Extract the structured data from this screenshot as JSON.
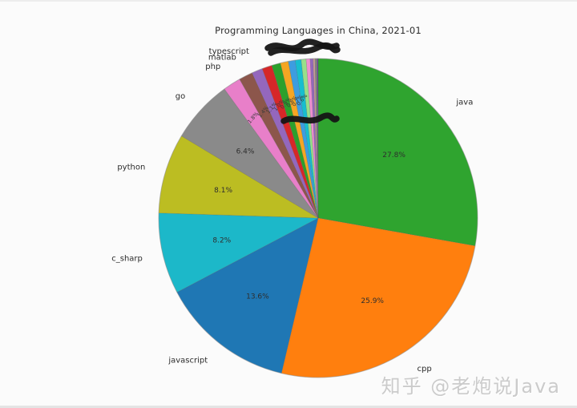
{
  "title": "Programming Languages in China, 2021-01",
  "watermark": "知乎 @老炮说Java",
  "chart_data": {
    "type": "pie",
    "title": "Programming Languages in China, 2021-01",
    "start_angle_deg": 90,
    "direction": "clockwise",
    "legend": "none",
    "slices": [
      {
        "label": "java",
        "value": 27.8,
        "pct_label": "27.8%",
        "color": "#2fa42f"
      },
      {
        "label": "cpp",
        "value": 25.9,
        "pct_label": "25.9%",
        "color": "#ff7f0e"
      },
      {
        "label": "javascript",
        "value": 13.6,
        "pct_label": "13.6%",
        "color": "#1f77b4"
      },
      {
        "label": "c_sharp",
        "value": 8.2,
        "pct_label": "8.2%",
        "color": "#1cb8c9"
      },
      {
        "label": "python",
        "value": 8.1,
        "pct_label": "8.1%",
        "color": "#bcbd22"
      },
      {
        "label": "go",
        "value": 6.4,
        "pct_label": "6.4%",
        "color": "#8a8a8a"
      },
      {
        "label": "php",
        "value": 1.8,
        "pct_label": "1.8%",
        "color": "#e87fc9"
      },
      {
        "label": "matlab",
        "value": 1.4,
        "pct_label": "1.4%",
        "color": "#8c564b"
      },
      {
        "label": "typescript",
        "value": 1.1,
        "pct_label": "1.1%",
        "color": "#9467bd"
      },
      {
        "label": "",
        "value": 1.0,
        "pct_label": "1.0%",
        "color": "#d62728"
      },
      {
        "label": "",
        "value": 0.9,
        "pct_label": "0.9%",
        "color": "#2ca02c"
      },
      {
        "label": "",
        "value": 0.8,
        "pct_label": "0.8%",
        "color": "#f5a623"
      },
      {
        "label": "",
        "value": 0.7,
        "pct_label": "0.7%",
        "color": "#3d9de0"
      },
      {
        "label": "",
        "value": 0.6,
        "pct_label": "0.6%",
        "color": "#17becf"
      },
      {
        "label": "",
        "value": 0.5,
        "pct_label": "",
        "color": "#98df8a"
      },
      {
        "label": "",
        "value": 0.4,
        "pct_label": "",
        "color": "#ee8fd0"
      },
      {
        "label": "",
        "value": 0.3,
        "pct_label": "",
        "color": "#9467bd"
      },
      {
        "label": "",
        "value": 0.2,
        "pct_label": "",
        "color": "#c49c94"
      },
      {
        "label": "",
        "value": 0.2,
        "pct_label": "",
        "color": "#7f7f7f"
      },
      {
        "label": "",
        "value": 0.1,
        "pct_label": "",
        "color": "#67409f"
      }
    ]
  }
}
